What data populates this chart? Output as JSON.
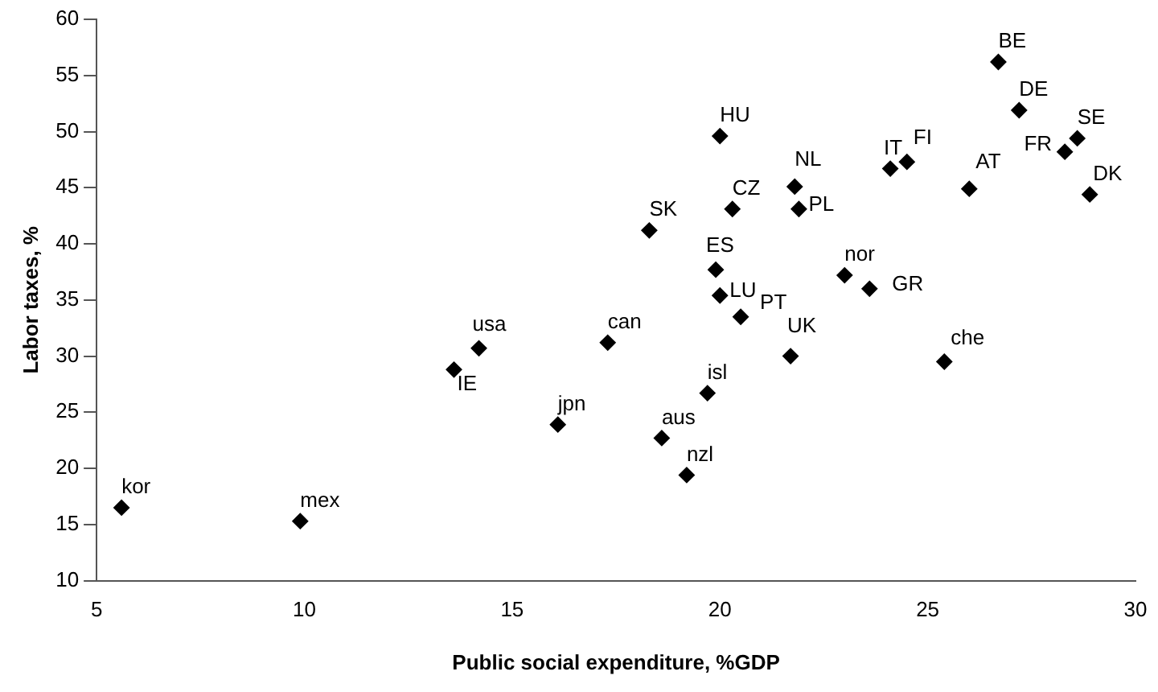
{
  "chart_data": {
    "type": "scatter",
    "xlabel": "Public social expenditure, %GDP",
    "ylabel": "Labor taxes, %",
    "x": [
      5.6,
      9.9,
      13.6,
      14.2,
      16.1,
      17.3,
      18.6,
      19.2,
      19.7,
      18.3,
      20.0,
      20.3,
      19.9,
      20.0,
      20.5,
      21.7,
      21.8,
      21.9,
      23.0,
      23.6,
      25.4,
      24.1,
      24.5,
      26.0,
      26.7,
      27.2,
      28.6,
      28.3,
      28.9
    ],
    "series": [
      {
        "color": "#000000",
        "values": [
          16.5,
          15.3,
          28.8,
          30.7,
          23.9,
          31.2,
          22.7,
          19.4,
          26.7,
          41.2,
          49.6,
          43.1,
          37.7,
          35.4,
          33.5,
          30.0,
          45.1,
          43.1,
          37.2,
          36.0,
          29.5,
          46.7,
          47.3,
          44.9,
          56.2,
          51.9,
          49.4,
          48.2,
          44.4
        ]
      }
    ],
    "value_labels": [
      "kor",
      "mex",
      "IE",
      "usa",
      "jpn",
      "can",
      "aus",
      "nzl",
      "isl",
      "SK",
      "HU",
      "CZ",
      "ES",
      "LU",
      "PT",
      "UK",
      "NL",
      "PL",
      "nor",
      "GR",
      "che",
      "IT",
      "FI",
      "AT",
      "BE",
      "DE",
      "SE",
      "FR",
      "DK"
    ],
    "xlim": [
      5,
      30
    ],
    "xticks": [
      5,
      10,
      15,
      20,
      25,
      30
    ],
    "ylim": [
      10,
      60
    ],
    "yticks": [
      10,
      15,
      20,
      25,
      30,
      35,
      40,
      45,
      50,
      55,
      60
    ],
    "grid": false,
    "legend": false,
    "marker": "diamond"
  }
}
